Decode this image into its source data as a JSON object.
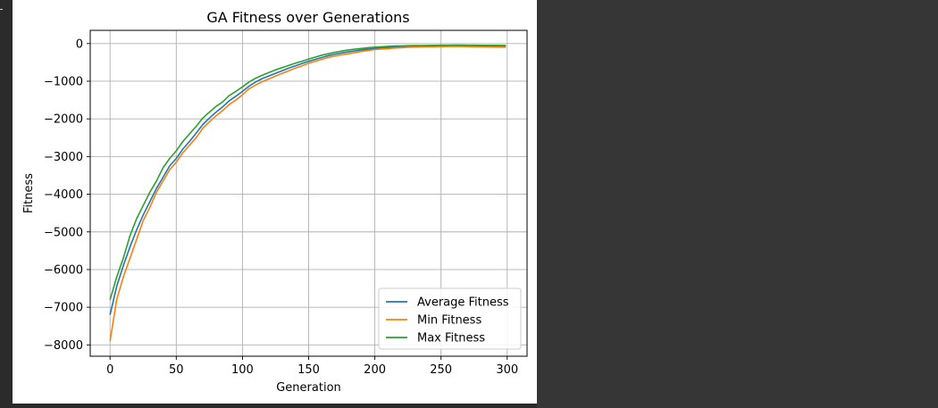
{
  "chart_data": {
    "type": "line",
    "title": "GA Fitness over Generations",
    "xlabel": "Generation",
    "ylabel": "Fitness",
    "xlim": [
      -15,
      315
    ],
    "ylim": [
      -8300,
      350
    ],
    "xticks": [
      0,
      50,
      100,
      150,
      200,
      250,
      300
    ],
    "yticks": [
      0,
      -1000,
      -2000,
      -3000,
      -4000,
      -5000,
      -6000,
      -7000,
      -8000
    ],
    "xtick_labels": [
      "0",
      "50",
      "100",
      "150",
      "200",
      "250",
      "300"
    ],
    "ytick_labels": [
      "0",
      "−1000",
      "−2000",
      "−3000",
      "−4000",
      "−5000",
      "−6000",
      "−7000",
      "−8000"
    ],
    "grid": true,
    "legend_position": "lower-right",
    "x": [
      0,
      5,
      10,
      15,
      20,
      25,
      30,
      35,
      40,
      45,
      50,
      55,
      60,
      65,
      70,
      75,
      80,
      85,
      90,
      95,
      100,
      105,
      110,
      115,
      120,
      125,
      130,
      135,
      140,
      145,
      150,
      155,
      160,
      165,
      170,
      175,
      180,
      185,
      190,
      195,
      200,
      205,
      210,
      215,
      220,
      225,
      230,
      235,
      240,
      245,
      250,
      255,
      260,
      265,
      270,
      275,
      280,
      285,
      290,
      295,
      299
    ],
    "series": [
      {
        "name": "Average Fitness",
        "color": "#1f77b4",
        "values": [
          -7200,
          -6450,
          -5900,
          -5400,
          -4950,
          -4550,
          -4200,
          -3850,
          -3550,
          -3250,
          -3050,
          -2800,
          -2600,
          -2380,
          -2150,
          -1980,
          -1820,
          -1680,
          -1520,
          -1400,
          -1270,
          -1130,
          -1020,
          -930,
          -860,
          -790,
          -720,
          -650,
          -590,
          -530,
          -470,
          -420,
          -370,
          -320,
          -280,
          -250,
          -220,
          -195,
          -170,
          -150,
          -130,
          -115,
          -105,
          -95,
          -88,
          -82,
          -78,
          -74,
          -70,
          -67,
          -64,
          -62,
          -61,
          -60,
          -60,
          -61,
          -62,
          -63,
          -64,
          -65,
          -66
        ]
      },
      {
        "name": "Min Fitness",
        "color": "#ff7f0e",
        "values": [
          -7900,
          -6800,
          -6200,
          -5700,
          -5200,
          -4700,
          -4350,
          -3950,
          -3650,
          -3350,
          -3150,
          -2900,
          -2700,
          -2500,
          -2250,
          -2080,
          -1920,
          -1780,
          -1620,
          -1500,
          -1360,
          -1200,
          -1100,
          -1010,
          -940,
          -860,
          -790,
          -720,
          -650,
          -590,
          -520,
          -470,
          -420,
          -370,
          -330,
          -300,
          -270,
          -240,
          -210,
          -185,
          -160,
          -145,
          -135,
          -120,
          -110,
          -100,
          -95,
          -90,
          -88,
          -85,
          -82,
          -80,
          -78,
          -80,
          -82,
          -85,
          -88,
          -90,
          -92,
          -95,
          -100
        ]
      },
      {
        "name": "Max Fitness",
        "color": "#2ca02c",
        "values": [
          -6800,
          -6200,
          -5700,
          -5100,
          -4650,
          -4300,
          -3950,
          -3650,
          -3300,
          -3050,
          -2850,
          -2600,
          -2400,
          -2200,
          -1980,
          -1820,
          -1670,
          -1550,
          -1380,
          -1270,
          -1150,
          -1020,
          -920,
          -840,
          -770,
          -700,
          -640,
          -580,
          -520,
          -470,
          -410,
          -360,
          -310,
          -270,
          -230,
          -200,
          -170,
          -150,
          -130,
          -110,
          -95,
          -85,
          -75,
          -68,
          -62,
          -58,
          -55,
          -52,
          -50,
          -48,
          -46,
          -45,
          -44,
          -44,
          -45,
          -46,
          -47,
          -48,
          -49,
          -50,
          -50
        ]
      }
    ]
  }
}
